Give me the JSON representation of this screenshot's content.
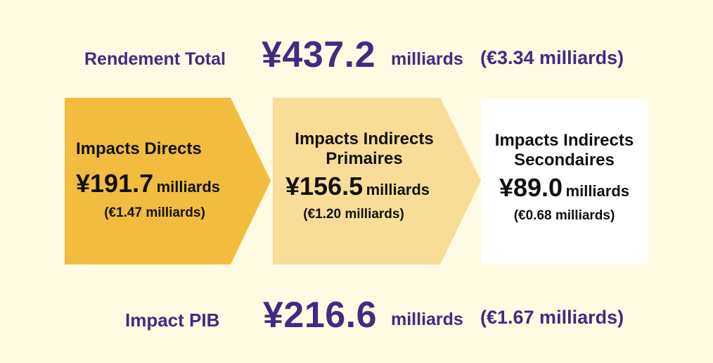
{
  "total": {
    "label": "Rendement Total",
    "amount": "¥437.2",
    "unit": "milliards",
    "euro": "(€3.34 milliards)"
  },
  "stages": [
    {
      "title_line1": "Impacts Directs",
      "title_line2": "",
      "amount": "¥191.7",
      "unit": "milliards",
      "euro": "(€1.47 milliards)",
      "color": "#f2bc3f"
    },
    {
      "title_line1": "Impacts Indirects",
      "title_line2": "Primaires",
      "amount": "¥156.5",
      "unit": "milliards",
      "euro": "(€1.20 milliards)",
      "color": "#f9dc98"
    },
    {
      "title_line1": "Impacts Indirects",
      "title_line2": "Secondaires",
      "amount": "¥89.0",
      "unit": "milliards",
      "euro": "(€0.68 milliards)",
      "color": "#ffffff"
    }
  ],
  "gdp": {
    "label": "Impact PIB",
    "amount": "¥216.6",
    "unit": "milliards",
    "euro": "(€1.67 milliards)"
  },
  "colors": {
    "background": "#fffbe3",
    "heading": "#3f2c82",
    "text": "#111111"
  }
}
